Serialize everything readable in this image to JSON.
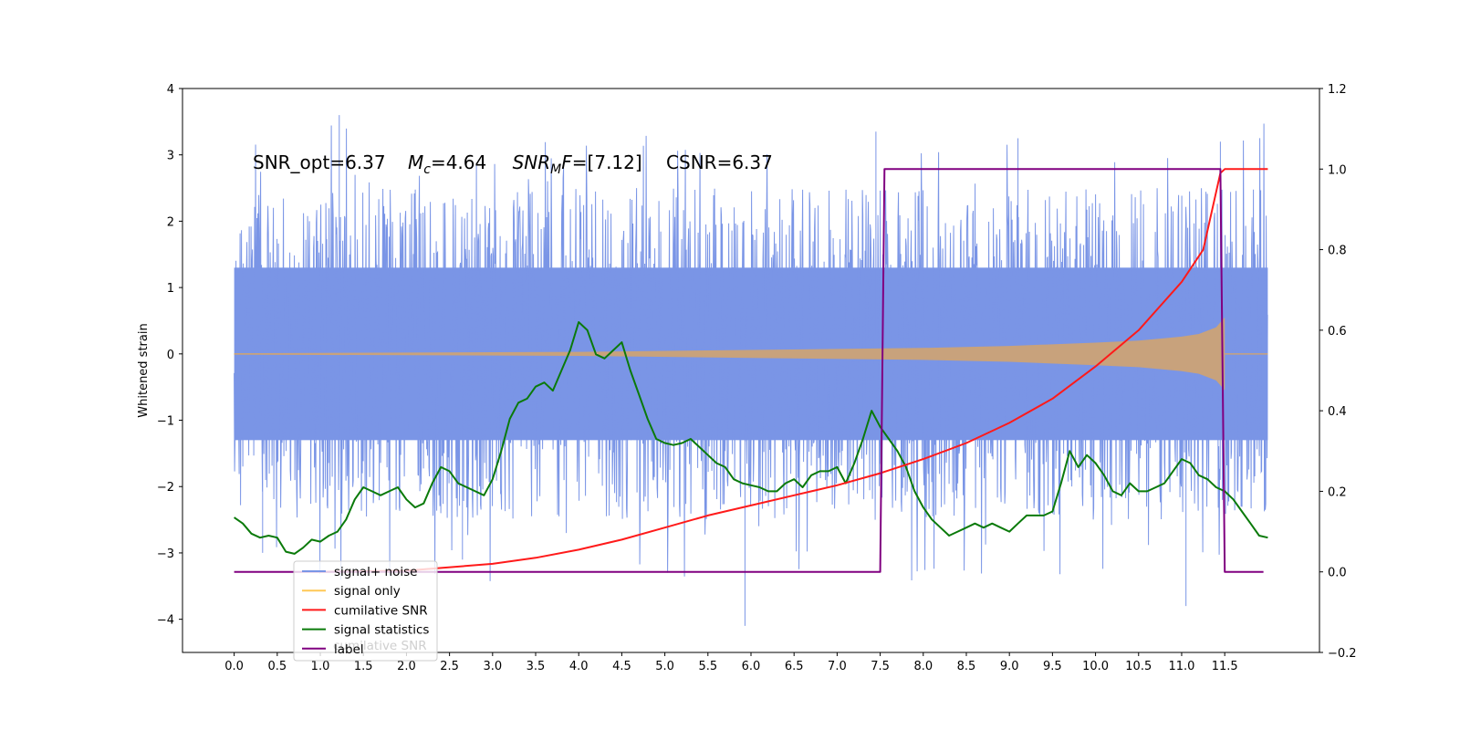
{
  "chart_data": {
    "type": "line",
    "annotation": {
      "snr_opt": "SNR_opt=6.37",
      "mc_sym": "M",
      "mc_sub": "c",
      "mc_val": "=4.64",
      "snrmf_sym": "SNR",
      "snrmf_sub": "M",
      "snrmf_f": "F",
      "snrmf_val": "=[7.12]",
      "csnr": "CSNR=6.37"
    },
    "ylabel_left": "Whitened strain",
    "ylim_left": [
      -4.5,
      4
    ],
    "ylim_right": [
      -0.2,
      1.2
    ],
    "xlim": [
      -0.6,
      12.6
    ],
    "x_ticks": [
      "0.0",
      "0.5",
      "1.0",
      "1.5",
      "2.0",
      "2.5",
      "3.0",
      "3.5",
      "4.0",
      "4.5",
      "5.0",
      "5.5",
      "6.0",
      "6.5",
      "7.0",
      "7.5",
      "8.0",
      "8.5",
      "9.0",
      "9.5",
      "10.0",
      "10.5",
      "11.0",
      "11.5"
    ],
    "y_ticks_left": [
      "4",
      "3",
      "2",
      "1",
      "0",
      "−1",
      "−2",
      "−3",
      "−4"
    ],
    "y_ticks_right": [
      "1.2",
      "1.0",
      "0.8",
      "0.6",
      "0.4",
      "0.2",
      "0.0",
      "−0.2"
    ],
    "legend": {
      "placement": "lower-left",
      "entries": [
        "signal+ noise",
        "signal only",
        "cumilative SNR",
        "signal statistics",
        "label"
      ],
      "ghost_text": "cumilative SNR"
    },
    "colors": {
      "noise": "#7a95e6",
      "signal": "#c8a27c",
      "signal_legend": "#ffc857",
      "snr": "#ff1a1a",
      "stat": "#0a7a0a",
      "label": "#800080"
    },
    "series": [
      {
        "name": "signal+ noise",
        "axis": "left",
        "x_range": [
          0,
          12
        ],
        "core_amplitude": 1.3,
        "spike_max": 3.6,
        "spike_min": -4.1
      },
      {
        "name": "signal only",
        "axis": "left",
        "x_range": [
          0,
          12
        ],
        "envelope": {
          "x": [
            0,
            2,
            4,
            6,
            8,
            9,
            10,
            10.5,
            11,
            11.2,
            11.4,
            11.5
          ],
          "amp": [
            0.01,
            0.02,
            0.03,
            0.06,
            0.09,
            0.12,
            0.17,
            0.2,
            0.26,
            0.3,
            0.4,
            0.55
          ]
        }
      },
      {
        "name": "cumilative SNR",
        "axis": "right",
        "x": [
          1.0,
          2.0,
          3.0,
          3.5,
          4.0,
          4.5,
          5.0,
          5.5,
          6.0,
          6.5,
          7.0,
          7.5,
          8.0,
          8.5,
          9.0,
          9.5,
          10.0,
          10.5,
          11.0,
          11.25,
          11.45,
          11.5,
          12.0
        ],
        "values": [
          0.0,
          0.003,
          0.02,
          0.035,
          0.055,
          0.08,
          0.11,
          0.14,
          0.165,
          0.19,
          0.215,
          0.245,
          0.28,
          0.32,
          0.37,
          0.43,
          0.51,
          0.6,
          0.72,
          0.8,
          0.99,
          1.0,
          1.0
        ]
      },
      {
        "name": "signal statistics",
        "axis": "right",
        "x": [
          0.0,
          0.1,
          0.2,
          0.3,
          0.4,
          0.5,
          0.6,
          0.7,
          0.8,
          0.9,
          1.0,
          1.1,
          1.2,
          1.3,
          1.4,
          1.5,
          1.6,
          1.7,
          1.8,
          1.9,
          2.0,
          2.1,
          2.2,
          2.3,
          2.4,
          2.5,
          2.6,
          2.7,
          2.8,
          2.9,
          3.0,
          3.1,
          3.2,
          3.3,
          3.4,
          3.5,
          3.6,
          3.7,
          3.8,
          3.9,
          4.0,
          4.1,
          4.2,
          4.3,
          4.4,
          4.5,
          4.6,
          4.7,
          4.8,
          4.9,
          5.0,
          5.1,
          5.2,
          5.3,
          5.4,
          5.5,
          5.6,
          5.7,
          5.8,
          5.9,
          6.0,
          6.1,
          6.2,
          6.3,
          6.4,
          6.5,
          6.6,
          6.7,
          6.8,
          6.9,
          7.0,
          7.1,
          7.2,
          7.3,
          7.4,
          7.5,
          7.6,
          7.7,
          7.8,
          7.9,
          8.0,
          8.1,
          8.2,
          8.3,
          8.4,
          8.5,
          8.6,
          8.7,
          8.8,
          8.9,
          9.0,
          9.1,
          9.2,
          9.3,
          9.4,
          9.5,
          9.6,
          9.7,
          9.8,
          9.9,
          10.0,
          10.1,
          10.2,
          10.3,
          10.4,
          10.5,
          10.6,
          10.7,
          10.8,
          10.9,
          11.0,
          11.1,
          11.2,
          11.3,
          11.4,
          11.5,
          11.6,
          11.7,
          11.8,
          11.9,
          12.0
        ],
        "values": [
          0.135,
          0.12,
          0.095,
          0.085,
          0.09,
          0.085,
          0.05,
          0.045,
          0.06,
          0.08,
          0.075,
          0.09,
          0.1,
          0.13,
          0.18,
          0.21,
          0.2,
          0.19,
          0.2,
          0.21,
          0.18,
          0.16,
          0.17,
          0.22,
          0.26,
          0.25,
          0.22,
          0.21,
          0.2,
          0.19,
          0.23,
          0.3,
          0.38,
          0.42,
          0.43,
          0.46,
          0.47,
          0.45,
          0.5,
          0.55,
          0.62,
          0.6,
          0.54,
          0.53,
          0.55,
          0.57,
          0.5,
          0.44,
          0.38,
          0.33,
          0.32,
          0.315,
          0.32,
          0.33,
          0.31,
          0.29,
          0.27,
          0.26,
          0.23,
          0.22,
          0.215,
          0.21,
          0.2,
          0.2,
          0.22,
          0.23,
          0.21,
          0.24,
          0.25,
          0.25,
          0.26,
          0.22,
          0.27,
          0.33,
          0.4,
          0.36,
          0.33,
          0.3,
          0.26,
          0.2,
          0.16,
          0.13,
          0.11,
          0.09,
          0.1,
          0.11,
          0.12,
          0.11,
          0.12,
          0.11,
          0.1,
          0.12,
          0.14,
          0.14,
          0.14,
          0.15,
          0.22,
          0.3,
          0.26,
          0.29,
          0.27,
          0.24,
          0.2,
          0.19,
          0.22,
          0.2,
          0.2,
          0.21,
          0.22,
          0.25,
          0.28,
          0.27,
          0.24,
          0.23,
          0.21,
          0.2,
          0.18,
          0.15,
          0.12,
          0.09,
          0.085
        ]
      },
      {
        "name": "label",
        "axis": "right",
        "x": [
          0,
          7.5,
          7.55,
          11.45,
          11.5,
          11.95
        ],
        "values": [
          0,
          0,
          1,
          1,
          0,
          0
        ]
      }
    ]
  }
}
